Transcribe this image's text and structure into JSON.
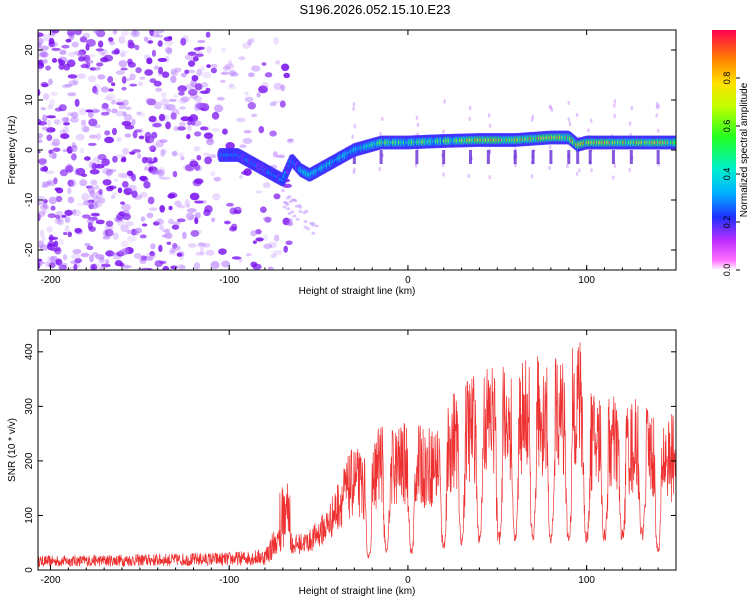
{
  "title": "S196.2026.052.15.10.E23",
  "colors": {
    "snr_line": "#ee3030",
    "axis": "#000000",
    "scatter": "#8a2be2"
  },
  "chart_data": [
    {
      "type": "heatmap",
      "name": "spectrogram",
      "xlabel": "Height of straight line (km)",
      "ylabel": "Frequency (Hz)",
      "xlim": [
        -207,
        150
      ],
      "ylim": [
        -24,
        24
      ],
      "xticks": [
        -200,
        -100,
        0,
        100
      ],
      "xtick_labels": [
        "-200",
        "-100",
        "0",
        "100"
      ],
      "yticks": [
        -20,
        -10,
        0,
        10,
        20
      ],
      "ytick_labels": [
        "-20",
        "-10",
        "0",
        "10",
        "20"
      ],
      "colorbar": {
        "label": "Normalized spectral amplitude",
        "range": [
          0,
          1
        ],
        "ticks": [
          0.0,
          0.2,
          0.4,
          0.6,
          0.8
        ],
        "tick_labels": [
          "0.0",
          "0.2",
          "0.4",
          "0.6",
          "0.8"
        ]
      },
      "ridge": {
        "x": [
          -100,
          -95,
          -90,
          -85,
          -80,
          -75,
          -70,
          -65,
          -60,
          -55,
          -50,
          -45,
          -40,
          -35,
          -30,
          -25,
          -20,
          -15,
          -10,
          0,
          20,
          40,
          60,
          80,
          90,
          95,
          100,
          120,
          150
        ],
        "freq": [
          -1,
          -1,
          -2,
          -3,
          -4,
          -5,
          -6,
          -2,
          -4,
          -5,
          -4,
          -3,
          -2,
          -1,
          0,
          0.5,
          1,
          1.5,
          1.5,
          1.5,
          1.8,
          2,
          2,
          2.5,
          2.5,
          1,
          1.5,
          1.5,
          1.5
        ]
      },
      "noise_region": {
        "x_from": -207,
        "x_to": -65,
        "freq_from": -24,
        "freq_to": 24
      }
    },
    {
      "type": "line",
      "name": "snr",
      "xlabel": "Height of straight line (km)",
      "ylabel": "SNR (10 * v/v)",
      "xlim": [
        -207,
        150
      ],
      "ylim": [
        0,
        440
      ],
      "xticks": [
        -200,
        -100,
        0,
        100
      ],
      "xtick_labels": [
        "-200",
        "-100",
        "0",
        "100"
      ],
      "yticks": [
        0,
        100,
        200,
        300,
        400
      ],
      "ytick_labels": [
        "0",
        "100",
        "200",
        "300",
        "400"
      ],
      "envelope": {
        "x": [
          -207,
          -100,
          -80,
          -75,
          -70,
          -68,
          -65,
          -55,
          -45,
          -40,
          -35,
          -30,
          -25,
          -20,
          -15,
          -10,
          0,
          10,
          20,
          25,
          30,
          40,
          50,
          60,
          70,
          80,
          90,
          95,
          100,
          110,
          120,
          130,
          140,
          145,
          150
        ],
        "y": [
          20,
          25,
          30,
          60,
          80,
          150,
          60,
          70,
          110,
          150,
          190,
          220,
          200,
          220,
          270,
          250,
          260,
          250,
          260,
          320,
          330,
          360,
          370,
          360,
          380,
          370,
          380,
          430,
          320,
          310,
          300,
          300,
          280,
          270,
          280
        ]
      },
      "dropouts": {
        "x": [
          -22,
          -12,
          2,
          20,
          30,
          40,
          51,
          60,
          70,
          80,
          90,
          100,
          110,
          120,
          131,
          140
        ],
        "y": [
          25,
          35,
          35,
          50,
          55,
          60,
          60,
          60,
          60,
          60,
          60,
          65,
          65,
          65,
          70,
          40
        ]
      }
    }
  ]
}
